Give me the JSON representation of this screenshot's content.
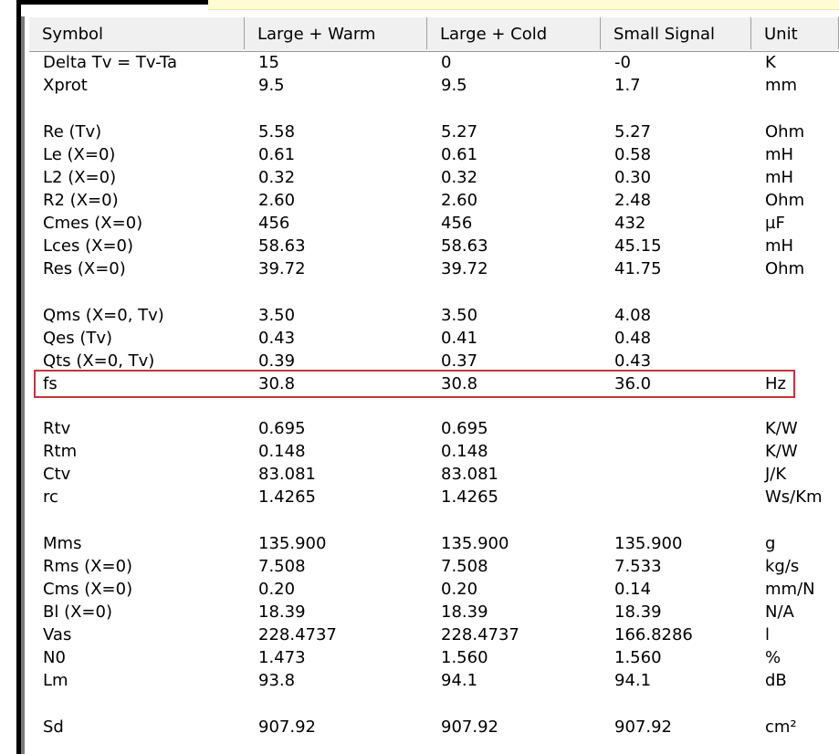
{
  "table": {
    "columns": [
      "Symbol",
      "Large + Warm",
      "Large + Cold",
      "Small Signal",
      "Unit"
    ],
    "groups": [
      [
        [
          "Delta Tv = Tv-Ta",
          "15",
          "0",
          "-0",
          "K"
        ],
        [
          "Xprot",
          "9.5",
          "9.5",
          "1.7",
          "mm"
        ]
      ],
      [
        [
          "Re (Tv)",
          "5.58",
          "5.27",
          "5.27",
          "Ohm"
        ],
        [
          "Le (X=0)",
          "0.61",
          "0.61",
          "0.58",
          "mH"
        ],
        [
          "L2 (X=0)",
          "0.32",
          "0.32",
          "0.30",
          "mH"
        ],
        [
          "R2 (X=0)",
          "2.60",
          "2.60",
          "2.48",
          "Ohm"
        ],
        [
          "Cmes (X=0)",
          "456",
          "456",
          "432",
          "µF"
        ],
        [
          "Lces (X=0)",
          "58.63",
          "58.63",
          "45.15",
          "mH"
        ],
        [
          "Res (X=0)",
          "39.72",
          "39.72",
          "41.75",
          "Ohm"
        ]
      ],
      [
        [
          "Qms (X=0, Tv)",
          "3.50",
          "3.50",
          "4.08",
          ""
        ],
        [
          "Qes (Tv)",
          "0.43",
          "0.41",
          "0.48",
          ""
        ],
        [
          "Qts (X=0, Tv)",
          "0.39",
          "0.37",
          "0.43",
          ""
        ],
        [
          "fs",
          "30.8",
          "30.8",
          "36.0",
          "Hz"
        ]
      ],
      [
        [
          "Rtv",
          "0.695",
          "0.695",
          "",
          "K/W"
        ],
        [
          "Rtm",
          "0.148",
          "0.148",
          "",
          "K/W"
        ],
        [
          "Ctv",
          "83.081",
          "83.081",
          "",
          "J/K"
        ],
        [
          "rc",
          "1.4265",
          "1.4265",
          "",
          "Ws/Km"
        ]
      ],
      [
        [
          "Mms",
          "135.900",
          "135.900",
          "135.900",
          "g"
        ],
        [
          "Rms (X=0)",
          "7.508",
          "7.508",
          "7.533",
          "kg/s"
        ],
        [
          "Cms (X=0)",
          "0.20",
          "0.20",
          "0.14",
          "mm/N"
        ],
        [
          "Bl (X=0)",
          "18.39",
          "18.39",
          "18.39",
          "N/A"
        ],
        [
          "Vas",
          "228.4737",
          "228.4737",
          "166.8286",
          "l"
        ],
        [
          "N0",
          "1.473",
          "1.560",
          "1.560",
          "%"
        ],
        [
          "Lm",
          "93.8",
          "94.1",
          "94.1",
          "dB"
        ]
      ],
      [
        [
          "Sd",
          "907.92",
          "907.92",
          "907.92",
          "cm²"
        ]
      ]
    ],
    "highlighted_symbol": "fs",
    "highlight_color": "#c8323a"
  }
}
